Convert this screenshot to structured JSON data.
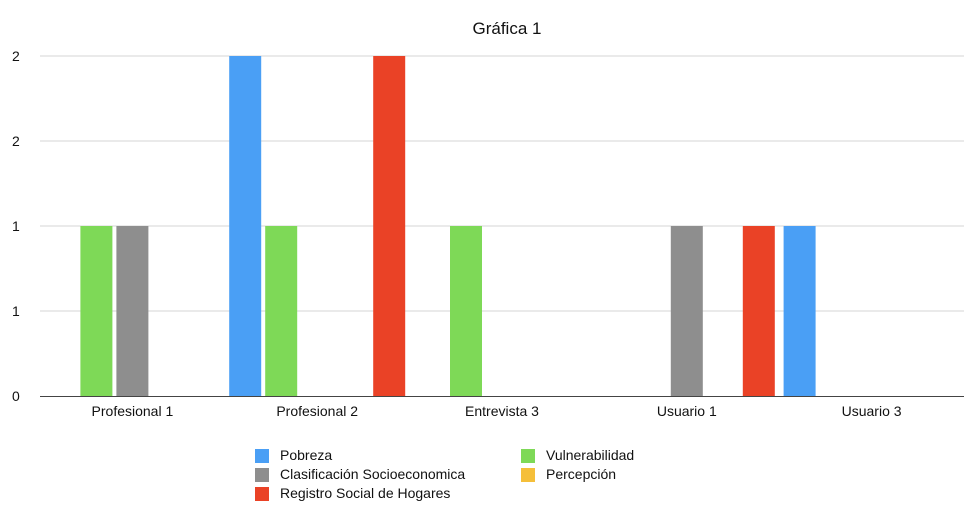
{
  "chart_data": {
    "type": "bar",
    "title": "Gráfica 1",
    "xlabel": "",
    "ylabel": "",
    "categories": [
      "Profesional 1",
      "Profesional 2",
      "Entrevista 3",
      "Usuario 1",
      "Usuario 3"
    ],
    "y_tick_labels": [
      "0",
      "1",
      "1",
      "2",
      "2"
    ],
    "ylim": [
      0,
      2
    ],
    "grid": true,
    "legend_position": "bottom",
    "series": [
      {
        "name": "Pobreza",
        "color": "#4a9ff5",
        "values": [
          0,
          2,
          0,
          0,
          1
        ]
      },
      {
        "name": "Vulnerabilidad",
        "color": "#7ed957",
        "values": [
          1,
          1,
          1,
          0,
          0
        ]
      },
      {
        "name": "Clasificación Socioeconomica",
        "color": "#8e8e8e",
        "values": [
          1,
          0,
          0,
          1,
          0
        ]
      },
      {
        "name": "Percepción",
        "color": "#f5bf3a",
        "values": [
          0,
          0,
          0,
          0,
          0
        ]
      },
      {
        "name": "Registro Social de Hogares",
        "color": "#ea4226",
        "values": [
          0,
          2,
          0,
          1,
          0
        ]
      }
    ],
    "legend_order": [
      [
        "Pobreza",
        "Vulnerabilidad"
      ],
      [
        "Clasificación Socioeconomica",
        "Percepción"
      ],
      [
        "Registro Social de Hogares"
      ]
    ]
  }
}
